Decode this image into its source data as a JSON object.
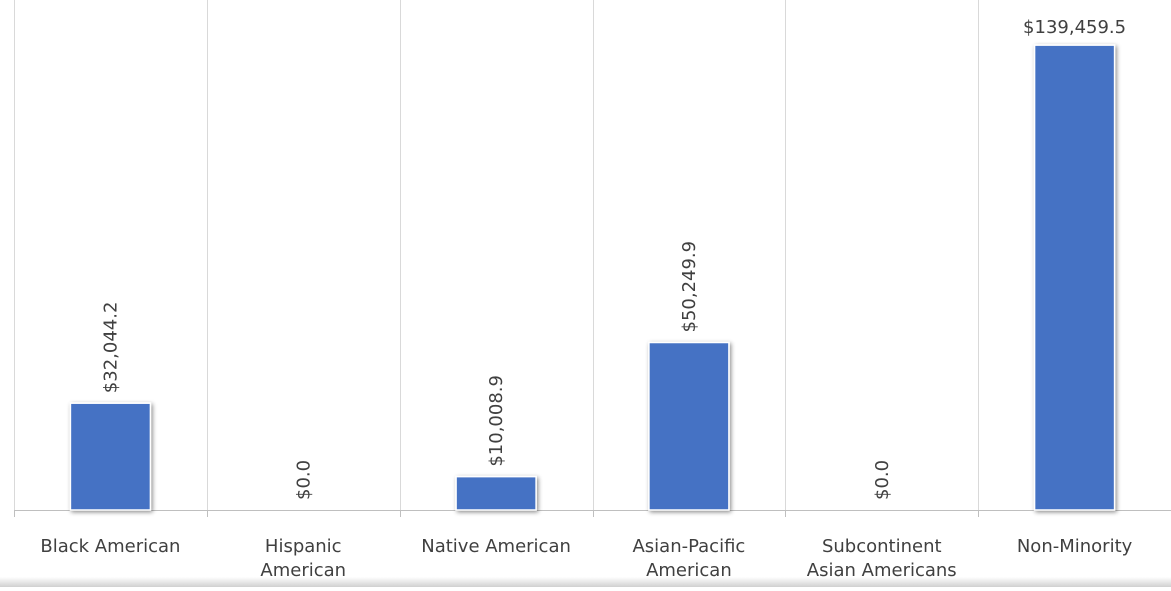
{
  "colors": {
    "bar": "#4472C4",
    "grid": "#D9D9D9",
    "axis": "#BFBFBF",
    "text": "#404040"
  },
  "chart_data": {
    "type": "bar",
    "title": "",
    "xlabel": "",
    "ylabel": "",
    "grid": "vertical category separators",
    "legend": "none",
    "ylim": [
      0,
      150000
    ],
    "categories": [
      [
        "Black American"
      ],
      [
        "Hispanic",
        "American"
      ],
      [
        "Native American"
      ],
      [
        "Asian-Pacific",
        "American"
      ],
      [
        "Subcontinent",
        "Asian Americans"
      ],
      [
        "Non-Minority"
      ]
    ],
    "values": [
      32044.2,
      0.0,
      10008.9,
      50249.9,
      0.0,
      139459.5
    ],
    "data_labels": [
      "$32,044.2",
      "$0.0",
      "$10,008.9",
      "$50,249.9",
      "$0.0",
      "$139,459.5"
    ],
    "label_orientation": [
      "vertical",
      "vertical",
      "vertical",
      "vertical",
      "vertical",
      "horizontal"
    ]
  }
}
